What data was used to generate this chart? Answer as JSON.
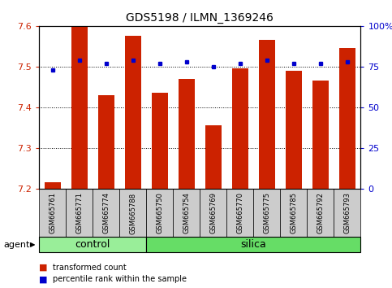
{
  "title": "GDS5198 / ILMN_1369246",
  "samples": [
    "GSM665761",
    "GSM665771",
    "GSM665774",
    "GSM665788",
    "GSM665750",
    "GSM665754",
    "GSM665769",
    "GSM665770",
    "GSM665775",
    "GSM665785",
    "GSM665792",
    "GSM665793"
  ],
  "transformed_count": [
    7.215,
    7.6,
    7.43,
    7.575,
    7.435,
    7.47,
    7.355,
    7.495,
    7.565,
    7.49,
    7.465,
    7.545
  ],
  "percentile_rank": [
    73,
    79,
    77,
    79,
    77,
    78,
    75,
    77,
    79,
    77,
    77,
    78
  ],
  "ylim_left": [
    7.2,
    7.6
  ],
  "ylim_right": [
    0,
    100
  ],
  "yticks_left": [
    7.2,
    7.3,
    7.4,
    7.5,
    7.6
  ],
  "yticks_right": [
    0,
    25,
    50,
    75,
    100
  ],
  "ytick_labels_right": [
    "0",
    "25",
    "50",
    "75",
    "100%"
  ],
  "control_count": 4,
  "bar_color": "#cc2200",
  "dot_color": "#0000cc",
  "control_label": "control",
  "silica_label": "silica",
  "agent_label": "agent",
  "control_color": "#99ee99",
  "silica_color": "#66dd66",
  "legend_tc": "transformed count",
  "legend_pr": "percentile rank within the sample",
  "left_tick_color": "#cc2200",
  "right_tick_color": "#0000cc",
  "bar_width": 0.6,
  "base_value": 7.2
}
